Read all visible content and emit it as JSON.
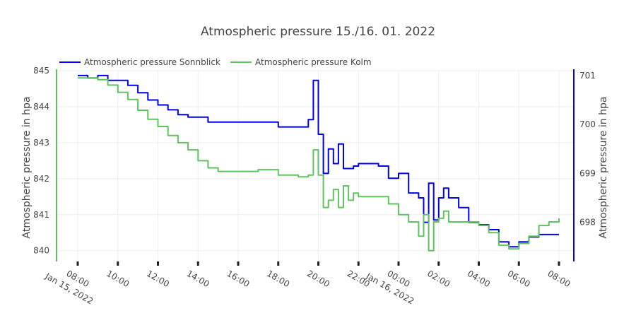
{
  "chart_data": {
    "type": "line",
    "title": "Atmospheric pressure 15./16. 01. 2022",
    "xlabel": "",
    "ylabel_left": "Atmospheric pressure in hpa",
    "ylabel_right": "Atmospheric pressure in hpa",
    "x_ticks": [
      {
        "time": "08:00",
        "date": "Jan 15, 2022"
      },
      {
        "time": "10:00",
        "date": ""
      },
      {
        "time": "12:00",
        "date": ""
      },
      {
        "time": "14:00",
        "date": ""
      },
      {
        "time": "16:00",
        "date": ""
      },
      {
        "time": "18:00",
        "date": ""
      },
      {
        "time": "20:00",
        "date": ""
      },
      {
        "time": "22:00",
        "date": ""
      },
      {
        "time": "00:00",
        "date": "Jan 16, 2022"
      },
      {
        "time": "02:00",
        "date": ""
      },
      {
        "time": "04:00",
        "date": ""
      },
      {
        "time": "06:00",
        "date": ""
      },
      {
        "time": "08:00",
        "date": ""
      }
    ],
    "x_range": [
      "2022-01-15 08:00",
      "2022-01-16 08:00"
    ],
    "y_left": {
      "range": [
        839.7,
        845.0
      ],
      "ticks": [
        "840",
        "841",
        "842",
        "843",
        "844",
        "845"
      ],
      "color": "#5fc35f"
    },
    "y_right": {
      "range": [
        697.2,
        701.1
      ],
      "ticks": [
        "698",
        "699",
        "700",
        "701"
      ],
      "color": "#0000ee"
    },
    "grid": true,
    "legend_position": "top-left",
    "series": [
      {
        "name": "Atmospheric pressure Sonnblick",
        "axis": "right",
        "color": "#0000ee",
        "x": [
          "2022-01-15 08:00",
          "2022-01-15 08:30",
          "2022-01-15 09:00",
          "2022-01-15 09:30",
          "2022-01-15 10:00",
          "2022-01-15 10:30",
          "2022-01-15 11:00",
          "2022-01-15 11:30",
          "2022-01-15 12:00",
          "2022-01-15 12:30",
          "2022-01-15 13:00",
          "2022-01-15 13:30",
          "2022-01-15 14:00",
          "2022-01-15 14:30",
          "2022-01-15 15:00",
          "2022-01-15 16:00",
          "2022-01-15 17:00",
          "2022-01-15 18:00",
          "2022-01-15 19:00",
          "2022-01-15 19:30",
          "2022-01-15 19:45",
          "2022-01-15 20:00",
          "2022-01-15 20:15",
          "2022-01-15 20:30",
          "2022-01-15 20:45",
          "2022-01-15 21:00",
          "2022-01-15 21:15",
          "2022-01-15 21:30",
          "2022-01-15 21:45",
          "2022-01-15 22:00",
          "2022-01-15 22:30",
          "2022-01-15 23:00",
          "2022-01-15 23:30",
          "2022-01-16 00:00",
          "2022-01-16 00:30",
          "2022-01-16 01:00",
          "2022-01-16 01:15",
          "2022-01-16 01:30",
          "2022-01-16 01:45",
          "2022-01-16 02:00",
          "2022-01-16 02:15",
          "2022-01-16 02:30",
          "2022-01-16 03:00",
          "2022-01-16 03:30",
          "2022-01-16 04:00",
          "2022-01-16 04:30",
          "2022-01-16 05:00",
          "2022-01-16 05:30",
          "2022-01-16 06:00",
          "2022-01-16 06:30",
          "2022-01-16 07:00",
          "2022-01-16 07:30",
          "2022-01-16 08:00"
        ],
        "y": [
          701.0,
          700.95,
          701.0,
          700.9,
          700.9,
          700.8,
          700.65,
          700.5,
          700.4,
          700.3,
          700.2,
          700.15,
          700.15,
          700.05,
          700.05,
          700.05,
          700.05,
          699.95,
          699.95,
          700.1,
          700.9,
          699.8,
          699.0,
          699.5,
          699.2,
          699.6,
          699.1,
          699.1,
          699.15,
          699.2,
          699.2,
          699.15,
          698.9,
          699.0,
          698.6,
          698.5,
          698.0,
          698.8,
          698.05,
          698.5,
          698.7,
          698.5,
          698.3,
          698.0,
          697.95,
          697.85,
          697.6,
          697.5,
          697.6,
          697.7,
          697.75,
          697.75,
          697.75
        ]
      },
      {
        "name": "Atmospheric pressure Kolm",
        "axis": "left",
        "color": "#5fc35f",
        "x": [
          "2022-01-15 08:00",
          "2022-01-15 08:30",
          "2022-01-15 09:00",
          "2022-01-15 09:30",
          "2022-01-15 10:00",
          "2022-01-15 10:30",
          "2022-01-15 11:00",
          "2022-01-15 11:30",
          "2022-01-15 12:00",
          "2022-01-15 12:30",
          "2022-01-15 13:00",
          "2022-01-15 13:30",
          "2022-01-15 14:00",
          "2022-01-15 14:30",
          "2022-01-15 15:00",
          "2022-01-15 16:00",
          "2022-01-15 17:00",
          "2022-01-15 18:00",
          "2022-01-15 19:00",
          "2022-01-15 19:30",
          "2022-01-15 19:45",
          "2022-01-15 20:00",
          "2022-01-15 20:15",
          "2022-01-15 20:30",
          "2022-01-15 20:45",
          "2022-01-15 21:00",
          "2022-01-15 21:15",
          "2022-01-15 21:30",
          "2022-01-15 21:45",
          "2022-01-15 22:00",
          "2022-01-15 22:30",
          "2022-01-15 23:00",
          "2022-01-15 23:30",
          "2022-01-16 00:00",
          "2022-01-16 00:30",
          "2022-01-16 01:00",
          "2022-01-16 01:15",
          "2022-01-16 01:30",
          "2022-01-16 01:45",
          "2022-01-16 02:00",
          "2022-01-16 02:15",
          "2022-01-16 02:30",
          "2022-01-16 03:00",
          "2022-01-16 03:30",
          "2022-01-16 04:00",
          "2022-01-16 04:30",
          "2022-01-16 05:00",
          "2022-01-16 05:30",
          "2022-01-16 06:00",
          "2022-01-16 06:30",
          "2022-01-16 07:00",
          "2022-01-16 07:30",
          "2022-01-16 08:00"
        ],
        "y": [
          844.8,
          844.8,
          844.75,
          844.6,
          844.4,
          844.2,
          843.9,
          843.65,
          843.45,
          843.2,
          843.0,
          842.8,
          842.5,
          842.3,
          842.2,
          842.2,
          842.25,
          842.1,
          842.05,
          842.1,
          842.8,
          842.1,
          841.2,
          841.4,
          841.7,
          841.2,
          841.8,
          841.4,
          841.6,
          841.5,
          841.5,
          841.5,
          841.3,
          841.0,
          840.8,
          840.4,
          841.0,
          840.0,
          840.8,
          840.9,
          841.1,
          840.8,
          840.8,
          840.8,
          840.7,
          840.5,
          840.15,
          840.05,
          840.2,
          840.4,
          840.7,
          840.8,
          840.9
        ]
      }
    ]
  }
}
